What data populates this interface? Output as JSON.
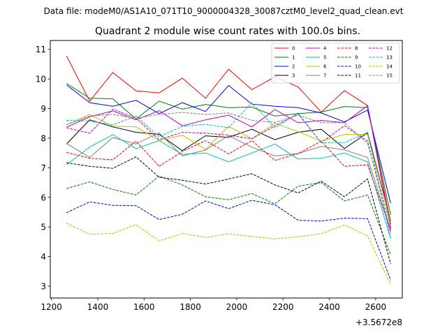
{
  "chart_data": {
    "type": "line",
    "suptitle": "Data file: modeM0/AS1A10_071T10_9000004328_30087cztM0_level2_quad_clean.evt",
    "title": "Quadrant 2 module wise count rates with 100.0s bins.",
    "xlabel": "",
    "ylabel": "",
    "x_offset_label": "+3.5672e8",
    "xlim": [
      1195,
      2715
    ],
    "ylim": [
      2.6,
      11.3
    ],
    "x_ticks": [
      1200,
      1400,
      1600,
      1800,
      2000,
      2200,
      2400,
      2600
    ],
    "y_ticks": [
      3,
      4,
      5,
      6,
      7,
      8,
      9,
      10,
      11
    ],
    "x": [
      1265,
      1365,
      1465,
      1565,
      1665,
      1765,
      1865,
      1965,
      2065,
      2165,
      2265,
      2365,
      2465,
      2565,
      2665
    ],
    "series": [
      {
        "name": "0",
        "color": "#ff0000",
        "dash": "solid",
        "values": [
          10.78,
          9.25,
          10.22,
          9.6,
          9.53,
          10.03,
          9.35,
          10.33,
          9.64,
          10.07,
          9.73,
          8.88,
          9.61,
          9.1,
          5.1
        ]
      },
      {
        "name": "1",
        "color": "#008000",
        "dash": "solid",
        "values": [
          9.85,
          9.35,
          9.33,
          8.65,
          9.25,
          8.98,
          9.14,
          9.03,
          9.05,
          8.75,
          8.83,
          8.88,
          9.07,
          9.03,
          5.4
        ]
      },
      {
        "name": "2",
        "color": "#0000ff",
        "dash": "solid",
        "values": [
          9.8,
          9.2,
          9.08,
          9.28,
          8.83,
          9.2,
          8.9,
          9.78,
          9.15,
          9.08,
          9.03,
          8.85,
          8.55,
          8.95,
          5.8
        ]
      },
      {
        "name": "3",
        "color": "#000000",
        "dash": "solid",
        "values": [
          7.8,
          8.62,
          8.38,
          8.2,
          8.13,
          7.58,
          8.08,
          8.03,
          8.3,
          7.95,
          8.2,
          8.3,
          7.65,
          8.18,
          5.2
        ]
      },
      {
        "name": "4",
        "color": "#bf00bf",
        "dash": "solid",
        "values": [
          8.37,
          8.72,
          8.92,
          8.62,
          8.93,
          8.42,
          8.62,
          8.78,
          8.38,
          8.97,
          8.52,
          8.6,
          8.52,
          9.1,
          4.95
        ]
      },
      {
        "name": "5",
        "color": "#00bfbf",
        "dash": "solid",
        "values": [
          7.1,
          7.7,
          8.12,
          7.65,
          7.92,
          7.45,
          7.5,
          7.2,
          7.5,
          7.8,
          7.3,
          7.32,
          7.5,
          7.2,
          4.6
        ]
      },
      {
        "name": "6",
        "color": "#bfbf00",
        "dash": "solid",
        "values": [
          8.45,
          8.8,
          8.4,
          8.38,
          7.92,
          8.1,
          7.62,
          8.4,
          7.98,
          8.5,
          8.22,
          7.9,
          8.13,
          8.12,
          5.15
        ]
      },
      {
        "name": "7",
        "color": "#808080",
        "dash": "solid",
        "values": [
          7.82,
          7.35,
          8.02,
          7.8,
          8.18,
          7.4,
          7.6,
          8.08,
          7.7,
          7.4,
          7.48,
          7.72,
          7.6,
          7.35,
          4.85
        ]
      },
      {
        "name": "8",
        "color": "#ff0000",
        "dash": "dashed",
        "values": [
          7.52,
          7.32,
          7.27,
          7.9,
          7.05,
          7.55,
          7.92,
          7.47,
          7.92,
          7.25,
          7.48,
          7.9,
          7.05,
          7.1,
          4.9
        ]
      },
      {
        "name": "9",
        "color": "#008000",
        "dash": "dashed",
        "values": [
          6.3,
          6.52,
          6.27,
          6.08,
          6.72,
          6.42,
          6.02,
          5.92,
          6.13,
          5.78,
          6.38,
          6.5,
          5.88,
          6.08,
          4.05
        ]
      },
      {
        "name": "10",
        "color": "#0000ff",
        "dash": "dashed",
        "values": [
          5.48,
          5.85,
          5.73,
          5.72,
          5.25,
          5.43,
          5.88,
          5.62,
          5.9,
          5.75,
          5.23,
          5.2,
          5.3,
          5.28,
          3.2
        ]
      },
      {
        "name": "11",
        "color": "#000000",
        "dash": "dashed",
        "values": [
          7.17,
          7.05,
          6.98,
          7.37,
          6.68,
          6.58,
          6.45,
          6.62,
          6.8,
          6.42,
          6.15,
          6.55,
          6.02,
          6.62,
          3.75
        ]
      },
      {
        "name": "12",
        "color": "#bf00bf",
        "dash": "dashed",
        "values": [
          8.35,
          8.17,
          8.98,
          8.68,
          7.95,
          8.2,
          8.17,
          8.1,
          7.98,
          8.42,
          8.82,
          7.85,
          8.42,
          7.9,
          4.8
        ]
      },
      {
        "name": "13",
        "color": "#00bfbf",
        "dash": "dashed",
        "values": [
          8.6,
          8.58,
          8.45,
          8.75,
          8.05,
          8.4,
          8.47,
          8.35,
          9.2,
          8.35,
          8.85,
          7.85,
          7.85,
          8.2,
          4.6
        ]
      },
      {
        "name": "14",
        "color": "#bfbf00",
        "dash": "dashed",
        "values": [
          5.13,
          4.75,
          4.78,
          5.08,
          4.53,
          4.78,
          4.65,
          4.77,
          4.68,
          4.6,
          4.67,
          4.77,
          5.07,
          4.7,
          3.05
        ]
      },
      {
        "name": "15",
        "color": "#808080",
        "dash": "dashed",
        "values": [
          8.45,
          8.75,
          8.8,
          8.67,
          8.8,
          8.87,
          8.8,
          8.85,
          8.6,
          8.53,
          8.78,
          8.52,
          8.52,
          7.82,
          5.05
        ]
      }
    ],
    "legend": {
      "location": "upper-right",
      "columns": 4
    }
  }
}
